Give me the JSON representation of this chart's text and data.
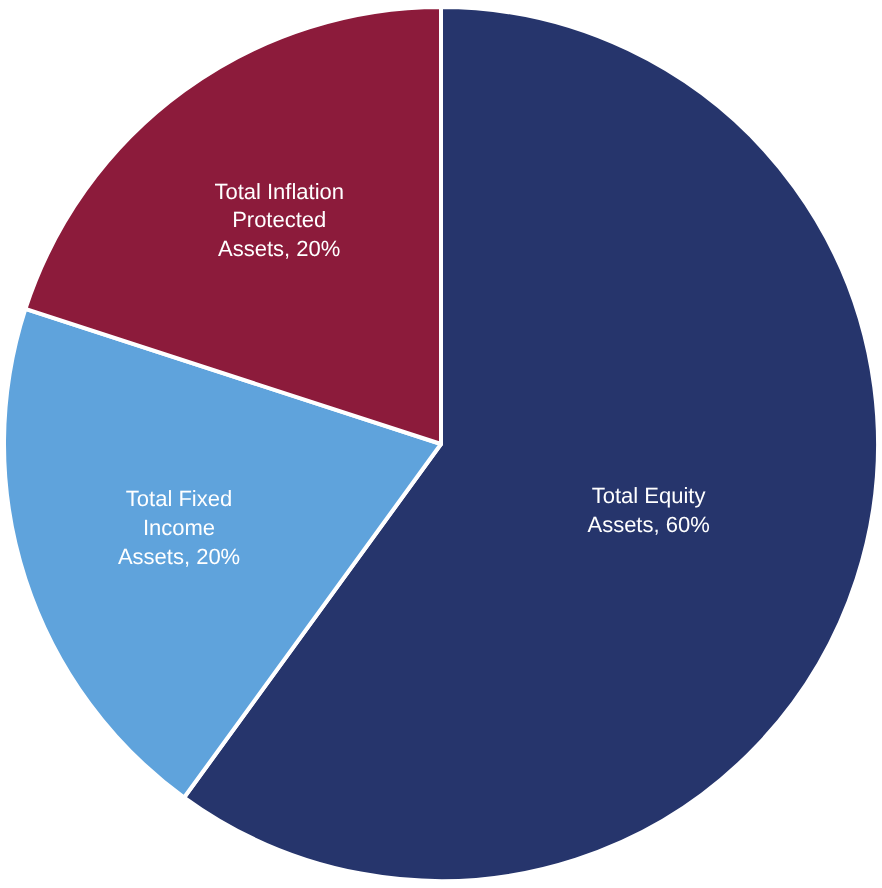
{
  "chart_data": {
    "type": "pie",
    "categories": [
      "Total Equity Assets, 60%",
      "Total Fixed Income Assets, 20%",
      "Total Inflation Protected Assets, 20%"
    ],
    "values": [
      60,
      20,
      20
    ],
    "colors": [
      "#26356c",
      "#5fa3dc",
      "#8c1b3b"
    ],
    "legend": false
  }
}
